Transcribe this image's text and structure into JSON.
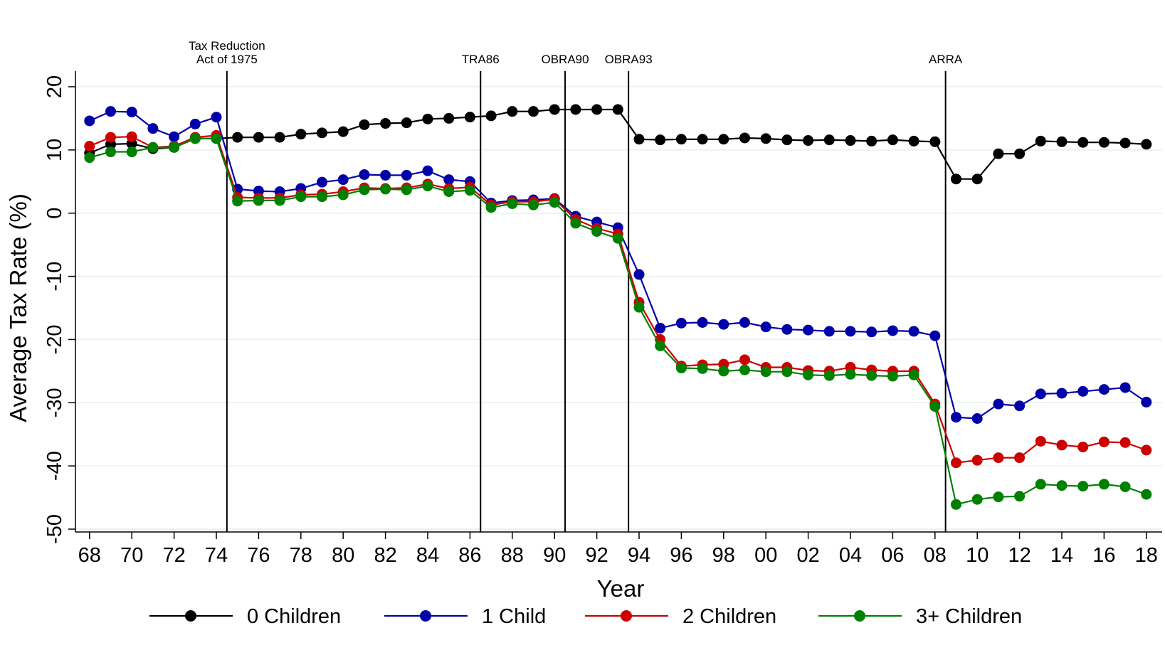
{
  "chart_data": {
    "type": "line",
    "title": "",
    "xlabel": "Year",
    "ylabel": "Average Tax Rate (%)",
    "x": [
      "68",
      "69",
      "70",
      "71",
      "72",
      "73",
      "74",
      "75",
      "76",
      "77",
      "78",
      "79",
      "80",
      "81",
      "82",
      "83",
      "84",
      "85",
      "86",
      "87",
      "88",
      "89",
      "90",
      "91",
      "92",
      "93",
      "94",
      "95",
      "96",
      "97",
      "98",
      "99",
      "00",
      "01",
      "02",
      "03",
      "04",
      "05",
      "06",
      "07",
      "08",
      "09",
      "10",
      "11",
      "12",
      "13",
      "14",
      "15",
      "16",
      "17",
      "18"
    ],
    "x_ticks": [
      "68",
      "70",
      "72",
      "74",
      "76",
      "78",
      "80",
      "82",
      "84",
      "86",
      "88",
      "90",
      "92",
      "94",
      "96",
      "98",
      "00",
      "02",
      "04",
      "06",
      "08",
      "10",
      "12",
      "14",
      "16",
      "18"
    ],
    "ylim": [
      -52,
      22
    ],
    "y_ticks": [
      20,
      10,
      0,
      -10,
      -20,
      -30,
      -40,
      -50
    ],
    "y_tick_labels": [
      "20",
      "10",
      "0",
      "-10",
      "-20",
      "-30",
      "-40",
      "-50"
    ],
    "grid": "horizontal",
    "legend_position": "bottom",
    "events": [
      {
        "after_index": 6,
        "label_lines": [
          "Tax Reduction",
          "Act of 1975"
        ]
      },
      {
        "after_index": 18,
        "label_lines": [
          "TRA86"
        ]
      },
      {
        "after_index": 22,
        "label_lines": [
          "OBRA90"
        ]
      },
      {
        "after_index": 25,
        "label_lines": [
          "OBRA93"
        ]
      },
      {
        "after_index": 40,
        "label_lines": [
          "ARRA"
        ]
      }
    ],
    "series": [
      {
        "name": "0 Children",
        "color": "#000000",
        "values": [
          9.5,
          10.9,
          11.0,
          10.2,
          10.4,
          11.8,
          11.8,
          12.0,
          12.0,
          12.0,
          12.5,
          12.7,
          12.9,
          14.0,
          14.2,
          14.3,
          14.9,
          15.0,
          15.2,
          15.4,
          16.1,
          16.1,
          16.4,
          16.4,
          16.4,
          16.4,
          11.7,
          11.6,
          11.7,
          11.7,
          11.7,
          11.9,
          11.8,
          11.6,
          11.5,
          11.6,
          11.5,
          11.4,
          11.6,
          11.4,
          11.3,
          5.4,
          5.4,
          9.4,
          9.4,
          11.4,
          11.3,
          11.2,
          11.2,
          11.1,
          10.9
        ]
      },
      {
        "name": "1 Child",
        "color": "#0000a8",
        "values": [
          14.6,
          16.1,
          16.0,
          13.4,
          12.1,
          14.1,
          15.2,
          3.8,
          3.5,
          3.4,
          3.9,
          4.9,
          5.3,
          6.1,
          6.0,
          6.0,
          6.7,
          5.3,
          5.0,
          1.6,
          2.0,
          2.1,
          2.3,
          -0.5,
          -1.4,
          -2.3,
          -9.7,
          -18.2,
          -17.4,
          -17.3,
          -17.6,
          -17.3,
          -18.0,
          -18.4,
          -18.5,
          -18.7,
          -18.7,
          -18.8,
          -18.6,
          -18.7,
          -19.4,
          -32.3,
          -32.5,
          -30.2,
          -30.5,
          -28.6,
          -28.5,
          -28.2,
          -27.9,
          -27.6,
          -29.9
        ]
      },
      {
        "name": "2 Children",
        "color": "#cc0000",
        "values": [
          10.6,
          12.0,
          12.1,
          10.4,
          10.6,
          12.0,
          12.3,
          2.5,
          2.4,
          2.4,
          2.9,
          3.0,
          3.4,
          4.0,
          3.9,
          4.0,
          4.6,
          3.9,
          4.1,
          1.3,
          1.8,
          1.8,
          2.2,
          -1.0,
          -2.4,
          -3.3,
          -14.1,
          -20.0,
          -24.2,
          -24.0,
          -23.9,
          -23.2,
          -24.4,
          -24.4,
          -24.9,
          -25.0,
          -24.4,
          -24.8,
          -25.0,
          -25.0,
          -30.2,
          -39.5,
          -39.1,
          -38.7,
          -38.7,
          -36.1,
          -36.7,
          -37.0,
          -36.2,
          -36.3,
          -37.5
        ]
      },
      {
        "name": "3+ Children",
        "color": "#008000",
        "values": [
          8.8,
          9.7,
          9.7,
          10.4,
          10.4,
          11.8,
          11.8,
          1.9,
          2.0,
          2.0,
          2.6,
          2.6,
          2.9,
          3.7,
          3.8,
          3.7,
          4.3,
          3.4,
          3.6,
          0.9,
          1.5,
          1.3,
          1.7,
          -1.6,
          -2.9,
          -4.0,
          -14.9,
          -21.0,
          -24.5,
          -24.6,
          -25.0,
          -24.8,
          -25.1,
          -25.1,
          -25.6,
          -25.7,
          -25.5,
          -25.7,
          -25.8,
          -25.6,
          -30.6,
          -46.1,
          -45.3,
          -44.9,
          -44.8,
          -42.9,
          -43.1,
          -43.2,
          -42.9,
          -43.3,
          -44.5
        ]
      }
    ]
  }
}
